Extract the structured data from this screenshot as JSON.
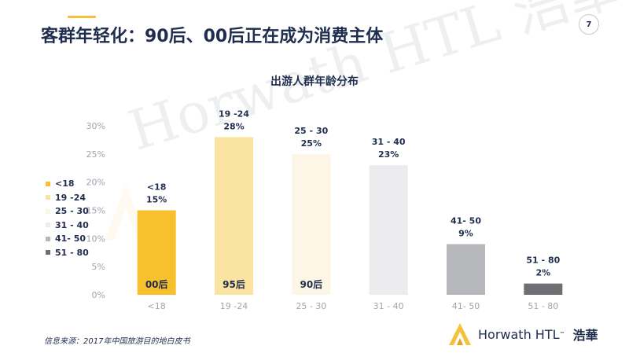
{
  "header": {
    "title": "客群年轻化：90后、00后正在成为消费主体",
    "page_number": "7"
  },
  "colors": {
    "title": "#1f2d4e",
    "accent": "#f5c13c",
    "axis_text": "#a0a4ad"
  },
  "watermark": "Horwath HTL 浩華",
  "chart_data": {
    "type": "bar",
    "title": "出游人群年龄分布",
    "categories": [
      "<18",
      "19 -24",
      "25 - 30",
      "31 - 40",
      "41- 50",
      "51 - 80"
    ],
    "values": [
      15,
      28,
      25,
      23,
      9,
      2
    ],
    "value_labels": [
      "15%",
      "28%",
      "25%",
      "23%",
      "9%",
      "2%"
    ],
    "bar_labels": [
      "<18",
      "19 -24",
      "25 - 30",
      "31 - 40",
      "41- 50",
      "51 - 80"
    ],
    "generation_labels": [
      "00后",
      "95后",
      "90后",
      "",
      "",
      ""
    ],
    "colors": [
      "#f6c12c",
      "#fbe3a2",
      "#fdf6e6",
      "#ececee",
      "#b6b7bb",
      "#6e6f72"
    ],
    "ylim": [
      0,
      30
    ],
    "yticks": [
      0,
      5,
      10,
      15,
      20,
      25,
      30
    ],
    "ytick_labels": [
      "0%",
      "5%",
      "10%",
      "15%",
      "20%",
      "25%",
      "30%"
    ],
    "xlabel": "",
    "ylabel": "",
    "grid": false,
    "legend": {
      "placement": "left",
      "entries": [
        "<18",
        "19 -24",
        "25 - 30",
        "31 - 40",
        "41- 50",
        "51 - 80"
      ]
    }
  },
  "footer": {
    "source": "信息来源：2017年中国旅游目的地白皮书",
    "logo_text": "Horwath HTL",
    "logo_tm": "™",
    "logo_chinese": "浩華"
  }
}
